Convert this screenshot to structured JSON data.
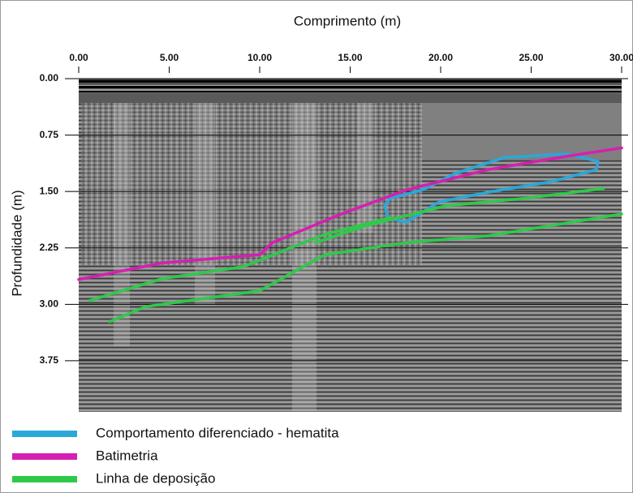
{
  "chart_data": {
    "type": "line",
    "x_label": "Comprimento (m)",
    "y_label": "Profundidade (m)",
    "xlim": [
      0,
      30
    ],
    "ylim": [
      0,
      4.43
    ],
    "y_inverted": true,
    "grid": true,
    "xticks": [
      {
        "value": 0,
        "label": "0.00"
      },
      {
        "value": 5,
        "label": "5.00"
      },
      {
        "value": 10,
        "label": "10.00"
      },
      {
        "value": 15,
        "label": "15.00"
      },
      {
        "value": 20,
        "label": "20.00"
      },
      {
        "value": 25,
        "label": "25.00"
      },
      {
        "value": 30,
        "label": "30.00"
      }
    ],
    "yticks": [
      {
        "value": 0,
        "label": "0.00"
      },
      0.75,
      {
        "value": 1.5,
        "label": "1.50"
      },
      2.25,
      {
        "value": 3,
        "label": "3.00"
      },
      3.75
    ],
    "legend": "bottom-left",
    "series": [
      {
        "name": "Comportamento diferenciado - hematita",
        "color": "#2aa8d8",
        "closed": true,
        "x": [
          16.9,
          17.1,
          18.1,
          19.9,
          22.6,
          26.1,
          28.6,
          28.7,
          27,
          23.5,
          20.8,
          19,
          17.2
        ],
        "values": [
          1.69,
          1.85,
          1.91,
          1.64,
          1.51,
          1.37,
          1.21,
          1.1,
          1.0,
          1.05,
          1.26,
          1.48,
          1.59
        ]
      },
      {
        "name": "Batimetria",
        "color": "#d61fb0",
        "x": [
          0,
          4.6,
          10,
          10.7,
          14.5,
          18.1,
          22.6,
          27,
          30
        ],
        "values": [
          2.67,
          2.45,
          2.34,
          2.18,
          1.8,
          1.48,
          1.21,
          1.03,
          0.92
        ]
      },
      {
        "name": "Linha de deposição",
        "color": "#2fc94a",
        "x": [
          13.1,
          15.8,
          20.3,
          24.7,
          29,
          null,
          0.6,
          4.6,
          9.1,
          13.6,
          17.2,
          null,
          1.7,
          3.7,
          10,
          13.6,
          18.1,
          22.6,
          30
        ],
        "values": [
          2.18,
          1.96,
          1.69,
          1.59,
          1.46,
          null,
          2.95,
          2.66,
          2.5,
          2.07,
          1.85,
          null,
          3.23,
          3.03,
          2.82,
          2.34,
          2.18,
          2.09,
          1.8
        ]
      }
    ]
  }
}
